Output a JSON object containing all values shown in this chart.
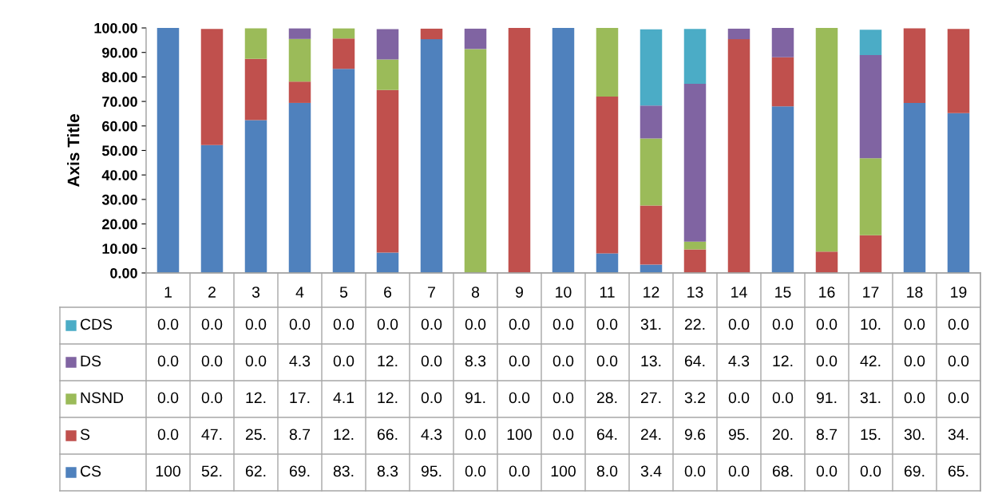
{
  "chart_data": {
    "type": "bar",
    "stacked": true,
    "ylabel": "Axis Title",
    "categories": [
      "1",
      "2",
      "3",
      "4",
      "5",
      "6",
      "7",
      "8",
      "9",
      "10",
      "11",
      "12",
      "13",
      "14",
      "15",
      "16",
      "17",
      "18",
      "19"
    ],
    "ylim": [
      0,
      100
    ],
    "yticks": [
      {
        "value": 0,
        "label": "0.00"
      },
      {
        "value": 10,
        "label": "10.00"
      },
      {
        "value": 20,
        "label": "20.00"
      },
      {
        "value": 30,
        "label": "30.00"
      },
      {
        "value": 40,
        "label": "40.00"
      },
      {
        "value": 50,
        "label": "50.00"
      },
      {
        "value": 60,
        "label": "60.00"
      },
      {
        "value": 70,
        "label": "70.00"
      },
      {
        "value": 80,
        "label": "80.00"
      },
      {
        "value": 90,
        "label": "90.00"
      },
      {
        "value": 100,
        "label": "100.00"
      }
    ],
    "grid": false,
    "legend": "bottom",
    "series": [
      {
        "name": "CS",
        "color": "#4f81bd",
        "values": [
          100,
          52.2,
          62.4,
          69.4,
          83.3,
          8.3,
          95.4,
          0,
          0,
          100,
          8.0,
          3.4,
          0,
          0,
          68.0,
          0,
          0,
          69.4,
          65.2
        ],
        "value_labels": [
          "100",
          "52.",
          "62.",
          "69.",
          "83.",
          "8.3",
          "95.",
          "0.0",
          "0.0",
          "100",
          "8.0",
          "3.4",
          "0.0",
          "0.0",
          "68.",
          "0.0",
          "0.0",
          "69.",
          "65."
        ]
      },
      {
        "name": "S",
        "color": "#c0504d",
        "values": [
          0,
          47.4,
          25.0,
          8.7,
          12.4,
          66.4,
          4.3,
          0,
          100,
          0,
          64.0,
          24.1,
          9.6,
          95.4,
          20.0,
          8.7,
          15.4,
          30.4,
          34.4
        ],
        "value_labels": [
          "0.0",
          "47.",
          "25.",
          "8.7",
          "12.",
          "66.",
          "4.3",
          "0.0",
          "100",
          "0.0",
          "64.",
          "24.",
          "9.6",
          "95.",
          "20.",
          "8.7",
          "15.",
          "30.",
          "34."
        ]
      },
      {
        "name": "NSND",
        "color": "#9bbb59",
        "values": [
          0,
          0,
          12.4,
          17.4,
          4.1,
          12.4,
          0,
          91.4,
          0,
          0,
          28.0,
          27.4,
          3.2,
          0,
          0,
          91.3,
          31.4,
          0,
          0
        ],
        "value_labels": [
          "0.0",
          "0.0",
          "12.",
          "17.",
          "4.1",
          "12.",
          "0.0",
          "91.",
          "0.0",
          "0.0",
          "28.",
          "27.",
          "3.2",
          "0.0",
          "0.0",
          "91.",
          "31.",
          "0.0",
          "0.0"
        ]
      },
      {
        "name": "DS",
        "color": "#8064a2",
        "values": [
          0,
          0,
          0,
          4.3,
          0,
          12.4,
          0,
          8.3,
          0,
          0,
          0,
          13.4,
          64.4,
          4.3,
          12.0,
          0,
          42.1,
          0,
          0
        ],
        "value_labels": [
          "0.0",
          "0.0",
          "0.0",
          "4.3",
          "0.0",
          "12.",
          "0.0",
          "8.3",
          "0.0",
          "0.0",
          "0.0",
          "13.",
          "64.",
          "4.3",
          "12.",
          "0.0",
          "42.",
          "0.0",
          "0.0"
        ]
      },
      {
        "name": "CDS",
        "color": "#4bacc6",
        "values": [
          0,
          0,
          0,
          0,
          0,
          0,
          0,
          0,
          0,
          0,
          0,
          31.1,
          22.4,
          0,
          0,
          0,
          10.4,
          0,
          0
        ],
        "value_labels": [
          "0.0",
          "0.0",
          "0.0",
          "0.0",
          "0.0",
          "0.0",
          "0.0",
          "0.0",
          "0.0",
          "0.0",
          "0.0",
          "31.",
          "22.",
          "0.0",
          "0.0",
          "0.0",
          "10.",
          "0.0",
          "0.0"
        ]
      }
    ]
  }
}
